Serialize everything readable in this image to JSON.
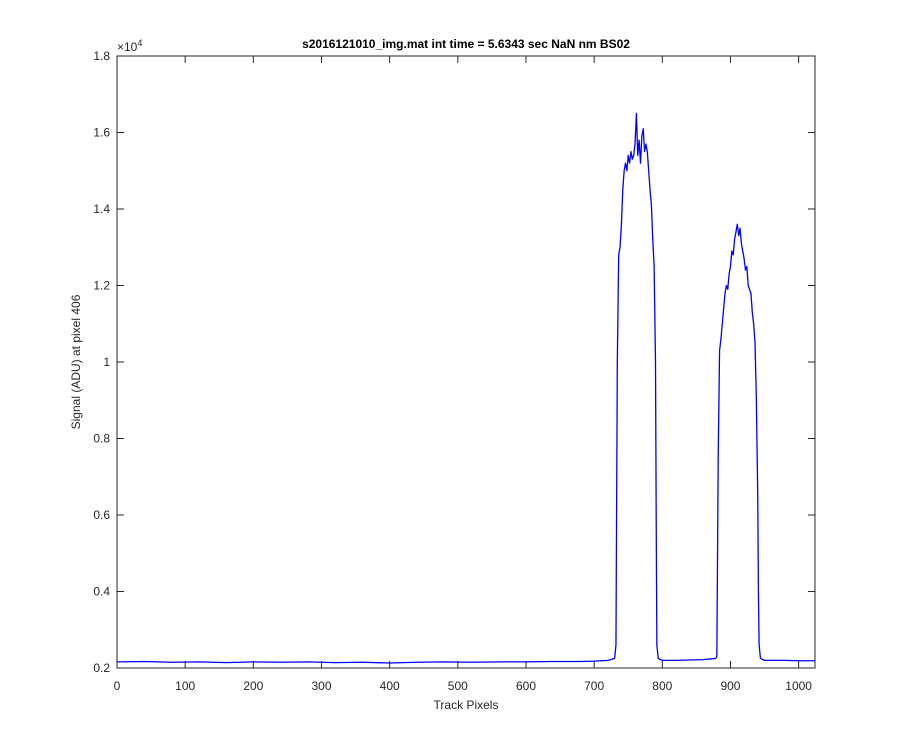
{
  "chart_data": {
    "type": "line",
    "title": "s2016121010_img.mat int time = 5.6343 sec  NaN nm BS02",
    "xlabel": "Track Pixels",
    "ylabel": "Signal (ADU) at pixel 406",
    "y_exponent_label": "×10",
    "y_exponent_power": "4",
    "xlim": [
      0,
      1024
    ],
    "ylim": [
      2000,
      18000
    ],
    "xticks": [
      0,
      100,
      200,
      300,
      400,
      500,
      600,
      700,
      800,
      900,
      1000
    ],
    "xtick_labels": [
      "0",
      "100",
      "200",
      "300",
      "400",
      "500",
      "600",
      "700",
      "800",
      "900",
      "1000"
    ],
    "yticks": [
      2000,
      4000,
      6000,
      8000,
      10000,
      12000,
      14000,
      16000,
      18000
    ],
    "ytick_labels": [
      "0.2",
      "0.4",
      "0.6",
      "0.8",
      "1",
      "1.2",
      "1.4",
      "1.6",
      "1.8"
    ],
    "grid": false,
    "line_color": "#0000ff",
    "series": [
      {
        "points": [
          [
            0,
            2160
          ],
          [
            40,
            2170
          ],
          [
            80,
            2150
          ],
          [
            120,
            2160
          ],
          [
            160,
            2140
          ],
          [
            200,
            2160
          ],
          [
            240,
            2150
          ],
          [
            280,
            2160
          ],
          [
            320,
            2140
          ],
          [
            360,
            2150
          ],
          [
            400,
            2130
          ],
          [
            440,
            2150
          ],
          [
            480,
            2160
          ],
          [
            520,
            2150
          ],
          [
            560,
            2160
          ],
          [
            600,
            2160
          ],
          [
            640,
            2170
          ],
          [
            680,
            2170
          ],
          [
            700,
            2180
          ],
          [
            720,
            2200
          ],
          [
            730,
            2250
          ],
          [
            732,
            2600
          ],
          [
            734,
            10000
          ],
          [
            736,
            12800
          ],
          [
            738,
            13000
          ],
          [
            740,
            13600
          ],
          [
            742,
            14500
          ],
          [
            744,
            15000
          ],
          [
            746,
            15200
          ],
          [
            748,
            15000
          ],
          [
            750,
            15400
          ],
          [
            752,
            15200
          ],
          [
            754,
            15500
          ],
          [
            756,
            15300
          ],
          [
            758,
            15400
          ],
          [
            760,
            15700
          ],
          [
            762,
            16500
          ],
          [
            764,
            15400
          ],
          [
            766,
            15800
          ],
          [
            768,
            15200
          ],
          [
            770,
            15900
          ],
          [
            772,
            16100
          ],
          [
            774,
            15500
          ],
          [
            776,
            15700
          ],
          [
            778,
            15500
          ],
          [
            780,
            15000
          ],
          [
            782,
            14500
          ],
          [
            784,
            14100
          ],
          [
            786,
            13200
          ],
          [
            788,
            12500
          ],
          [
            790,
            10000
          ],
          [
            791,
            6000
          ],
          [
            792,
            2600
          ],
          [
            794,
            2250
          ],
          [
            800,
            2200
          ],
          [
            820,
            2200
          ],
          [
            840,
            2210
          ],
          [
            860,
            2220
          ],
          [
            878,
            2250
          ],
          [
            880,
            2300
          ],
          [
            882,
            7500
          ],
          [
            884,
            10300
          ],
          [
            886,
            10600
          ],
          [
            888,
            11000
          ],
          [
            890,
            11400
          ],
          [
            892,
            11800
          ],
          [
            894,
            12000
          ],
          [
            896,
            11900
          ],
          [
            898,
            12300
          ],
          [
            900,
            12500
          ],
          [
            902,
            12900
          ],
          [
            904,
            12800
          ],
          [
            906,
            13200
          ],
          [
            908,
            13400
          ],
          [
            910,
            13600
          ],
          [
            912,
            13300
          ],
          [
            914,
            13500
          ],
          [
            916,
            13100
          ],
          [
            918,
            12900
          ],
          [
            920,
            12700
          ],
          [
            922,
            12400
          ],
          [
            924,
            12500
          ],
          [
            926,
            12000
          ],
          [
            928,
            11900
          ],
          [
            930,
            11800
          ],
          [
            932,
            11300
          ],
          [
            934,
            11000
          ],
          [
            936,
            10500
          ],
          [
            938,
            9000
          ],
          [
            940,
            6500
          ],
          [
            941,
            4000
          ],
          [
            942,
            2600
          ],
          [
            944,
            2250
          ],
          [
            950,
            2200
          ],
          [
            980,
            2200
          ],
          [
            1000,
            2190
          ],
          [
            1024,
            2190
          ]
        ]
      }
    ]
  }
}
